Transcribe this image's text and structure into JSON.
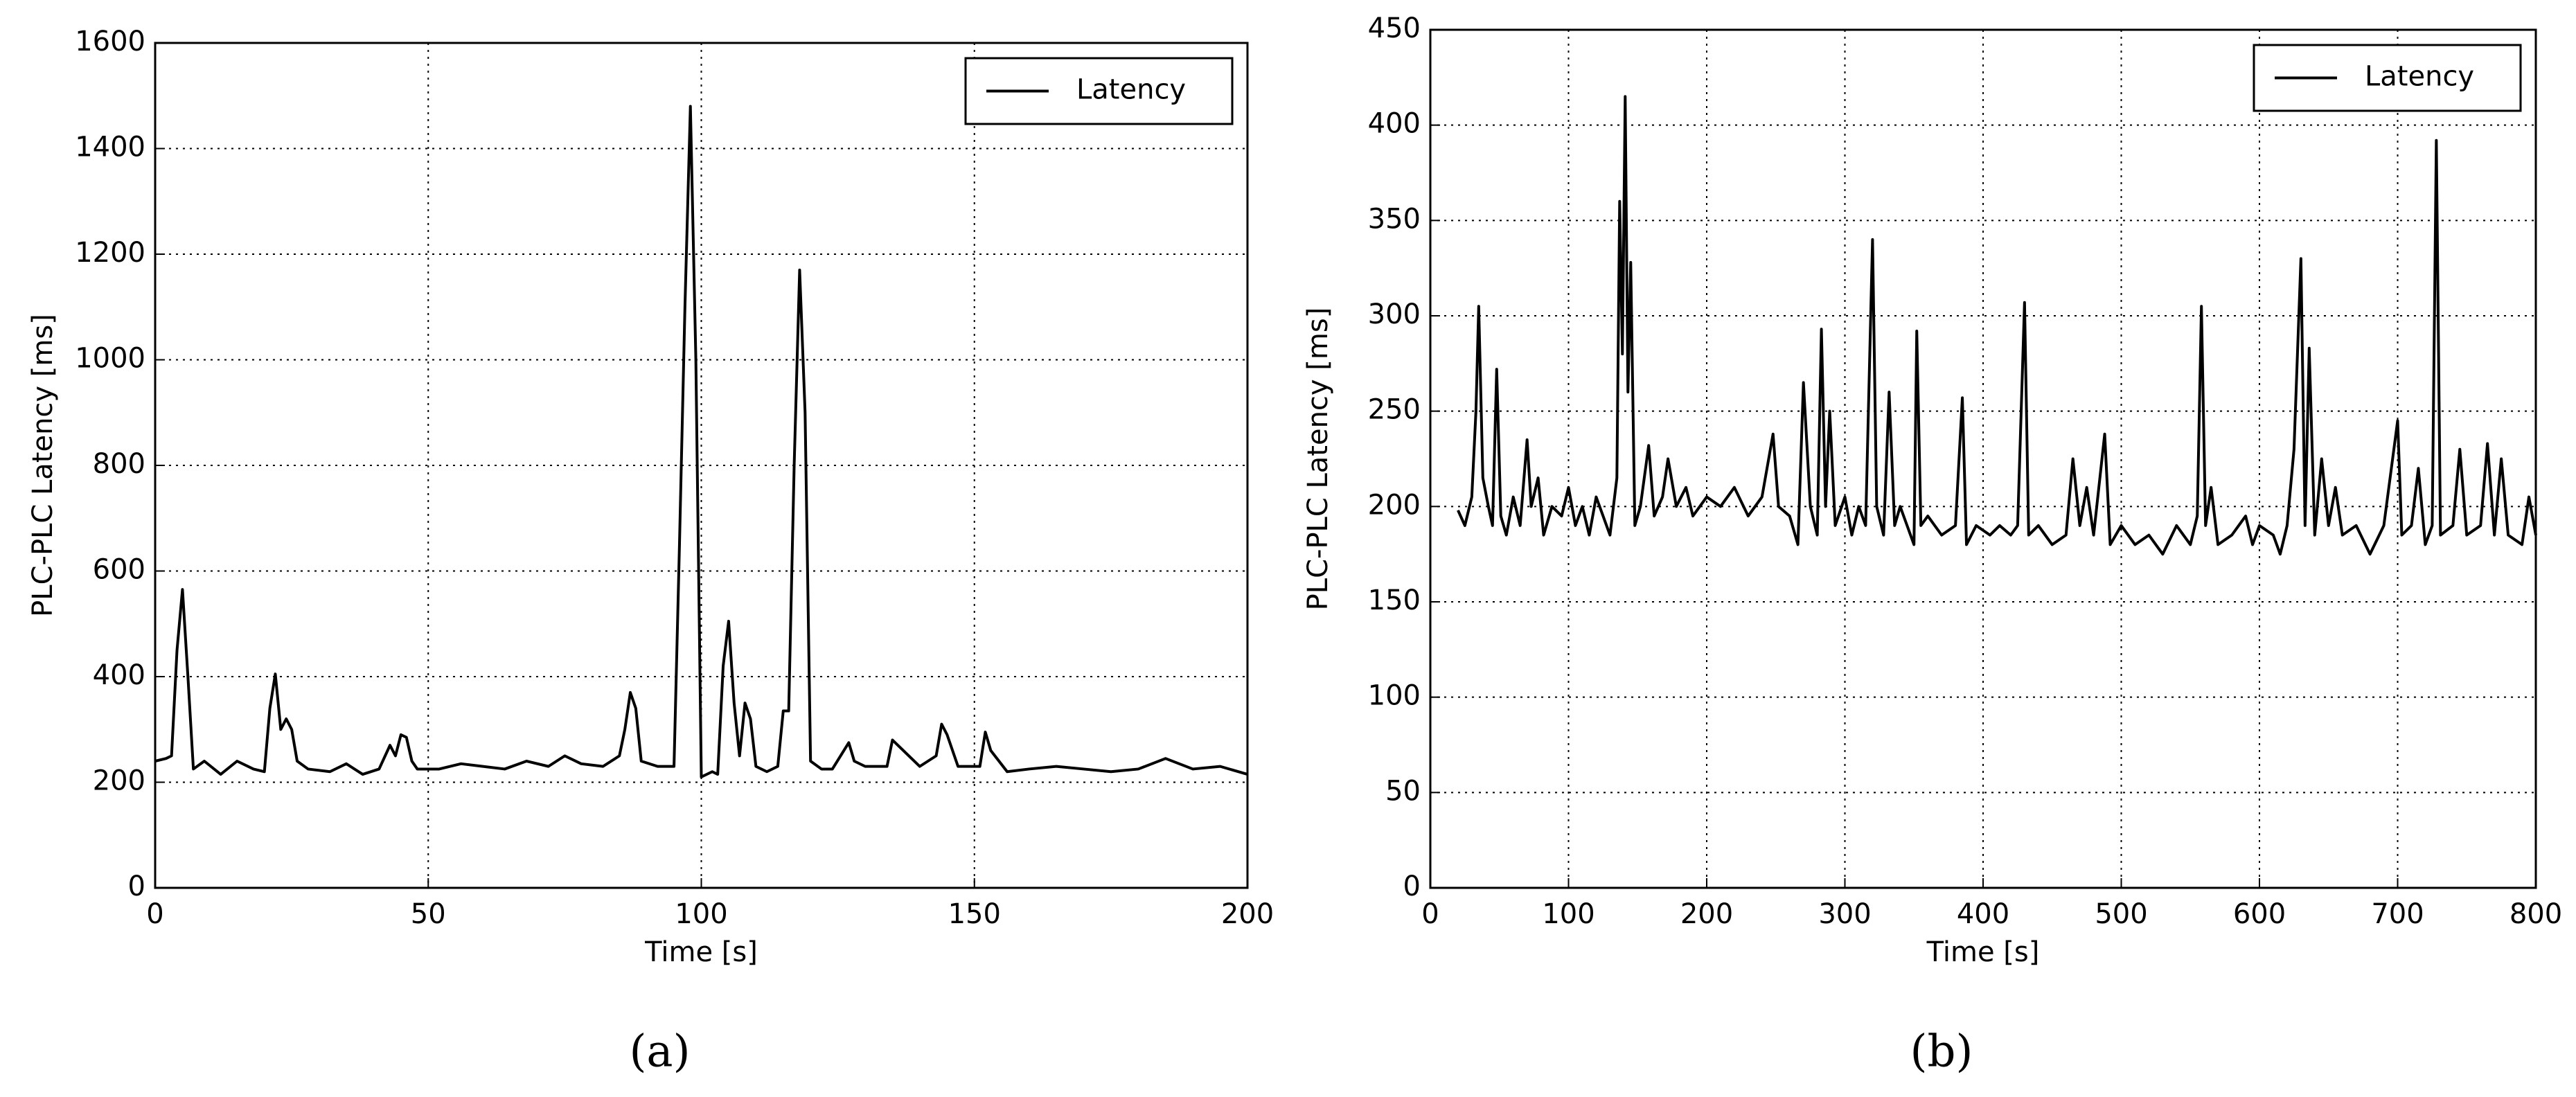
{
  "chart_data": [
    {
      "type": "line",
      "caption": "(a)",
      "xlabel": "Time [s]",
      "ylabel": "PLC-PLC Latency [ms]",
      "xlim": [
        0,
        200
      ],
      "ylim": [
        0,
        1600
      ],
      "xticks": [
        0,
        50,
        100,
        150,
        200
      ],
      "yticks": [
        0,
        200,
        400,
        600,
        800,
        1000,
        1200,
        1400,
        1600
      ],
      "grid": true,
      "legend": "upper right",
      "x": [
        0,
        2,
        3,
        4,
        5,
        6,
        7,
        9,
        12,
        15,
        18,
        20,
        21,
        22,
        23,
        24,
        25,
        26,
        28,
        32,
        35,
        38,
        41,
        43,
        44,
        45,
        46,
        47,
        48,
        52,
        56,
        60,
        64,
        68,
        72,
        75,
        78,
        82,
        85,
        86,
        87,
        88,
        89,
        92,
        95,
        96,
        97,
        98,
        99,
        100,
        102,
        103,
        104,
        105,
        106,
        107,
        108,
        109,
        110,
        112,
        114,
        115,
        116,
        117,
        118,
        119,
        120,
        122,
        124,
        127,
        128,
        130,
        134,
        135,
        136,
        140,
        143,
        144,
        145,
        147,
        151,
        152,
        153,
        156,
        160,
        165,
        170,
        175,
        180,
        185,
        190,
        195,
        200
      ],
      "series": [
        {
          "name": "Latency",
          "color": "#000000",
          "values": [
            240,
            245,
            250,
            450,
            565,
            400,
            225,
            240,
            215,
            240,
            225,
            220,
            340,
            405,
            300,
            320,
            300,
            240,
            225,
            220,
            235,
            215,
            225,
            270,
            250,
            290,
            285,
            240,
            225,
            225,
            235,
            230,
            225,
            240,
            230,
            250,
            235,
            230,
            250,
            300,
            370,
            340,
            240,
            230,
            230,
            650,
            1100,
            1480,
            1000,
            210,
            220,
            215,
            420,
            505,
            350,
            250,
            350,
            320,
            230,
            220,
            230,
            335,
            335,
            800,
            1170,
            900,
            240,
            225,
            225,
            275,
            240,
            230,
            230,
            280,
            270,
            230,
            250,
            310,
            290,
            230,
            230,
            295,
            260,
            220,
            225,
            230,
            225,
            220,
            225,
            245,
            225,
            230,
            215
          ]
        }
      ]
    },
    {
      "type": "line",
      "caption": "(b)",
      "xlabel": "Time [s]",
      "ylabel": "PLC-PLC Latency [ms]",
      "xlim": [
        0,
        800
      ],
      "ylim": [
        0,
        450
      ],
      "xticks": [
        0,
        100,
        200,
        300,
        400,
        500,
        600,
        700,
        800
      ],
      "yticks": [
        0,
        50,
        100,
        150,
        200,
        250,
        300,
        350,
        400,
        450
      ],
      "grid": true,
      "legend": "upper right",
      "x": [
        20,
        25,
        30,
        33,
        35,
        38,
        42,
        45,
        48,
        51,
        55,
        60,
        65,
        70,
        73,
        78,
        82,
        88,
        95,
        100,
        105,
        110,
        115,
        120,
        125,
        130,
        135,
        137,
        139,
        141,
        143,
        145,
        148,
        152,
        158,
        162,
        168,
        172,
        178,
        185,
        190,
        200,
        210,
        220,
        230,
        240,
        248,
        252,
        260,
        266,
        270,
        275,
        280,
        283,
        286,
        289,
        293,
        300,
        305,
        310,
        315,
        320,
        323,
        328,
        332,
        336,
        340,
        345,
        350,
        352,
        355,
        360,
        370,
        380,
        385,
        388,
        395,
        405,
        412,
        420,
        425,
        430,
        433,
        440,
        450,
        460,
        465,
        470,
        475,
        480,
        488,
        492,
        500,
        510,
        520,
        530,
        540,
        550,
        555,
        558,
        561,
        565,
        570,
        580,
        590,
        595,
        600,
        610,
        615,
        620,
        625,
        630,
        633,
        636,
        640,
        645,
        650,
        655,
        660,
        670,
        680,
        690,
        700,
        703,
        710,
        715,
        720,
        725,
        728,
        731,
        740,
        745,
        750,
        760,
        765,
        770,
        775,
        780,
        790,
        795,
        800
      ],
      "series": [
        {
          "name": "Latency",
          "color": "#000000",
          "values": [
            198,
            190,
            205,
            250,
            305,
            215,
            200,
            190,
            272,
            195,
            185,
            205,
            190,
            235,
            200,
            215,
            185,
            200,
            195,
            210,
            190,
            200,
            185,
            205,
            195,
            185,
            215,
            360,
            280,
            415,
            260,
            328,
            190,
            200,
            232,
            195,
            205,
            225,
            200,
            210,
            195,
            205,
            200,
            210,
            195,
            205,
            238,
            200,
            195,
            180,
            265,
            200,
            185,
            293,
            200,
            250,
            190,
            205,
            185,
            200,
            190,
            340,
            200,
            185,
            260,
            190,
            200,
            190,
            180,
            292,
            190,
            195,
            185,
            190,
            257,
            180,
            190,
            185,
            190,
            185,
            190,
            307,
            185,
            190,
            180,
            185,
            225,
            190,
            210,
            185,
            238,
            180,
            190,
            180,
            185,
            175,
            190,
            180,
            195,
            305,
            190,
            210,
            180,
            185,
            195,
            180,
            190,
            185,
            175,
            190,
            230,
            330,
            190,
            283,
            185,
            225,
            190,
            210,
            185,
            190,
            175,
            190,
            245,
            185,
            190,
            220,
            180,
            190,
            392,
            185,
            190,
            230,
            185,
            190,
            233,
            185,
            225,
            185,
            180,
            205,
            185
          ]
        }
      ]
    }
  ]
}
